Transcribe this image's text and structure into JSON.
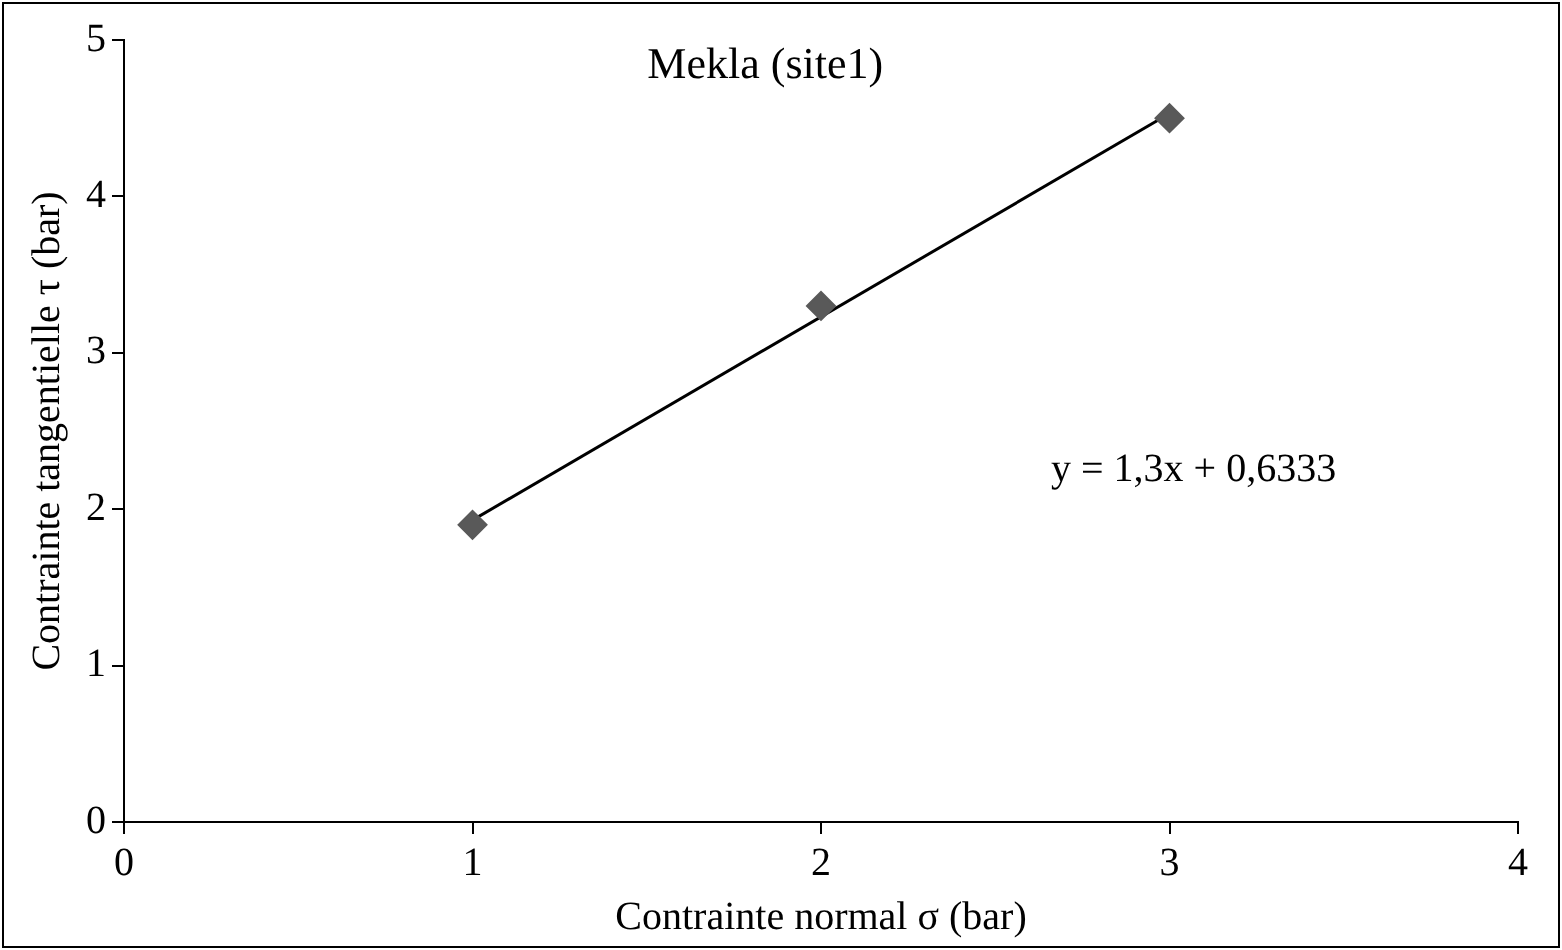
{
  "chart_data": {
    "type": "scatter",
    "title": "Mekla (site1)",
    "xlabel": "Contrainte normal σ (bar)",
    "ylabel": "Contrainte tangentielle τ (bar)",
    "x": [
      1,
      2,
      3
    ],
    "series": [
      {
        "color": "#595959",
        "marker": "diamond",
        "values": [
          1.9,
          3.3,
          4.5
        ]
      },
      {
        "type": "line",
        "color": "#000000",
        "marker": "none",
        "line_style": "solid",
        "x": [
          1,
          3
        ],
        "values": [
          1.93,
          4.53
        ]
      }
    ],
    "xlim": [
      0,
      4
    ],
    "xticks": [
      0,
      1,
      2,
      3,
      4
    ],
    "ylim": [
      0,
      5
    ],
    "yticks": [
      0,
      1,
      2,
      3,
      4,
      5
    ],
    "grid": false,
    "legend": false,
    "annotations": [
      "y = 1,3x + 0,6333"
    ]
  }
}
